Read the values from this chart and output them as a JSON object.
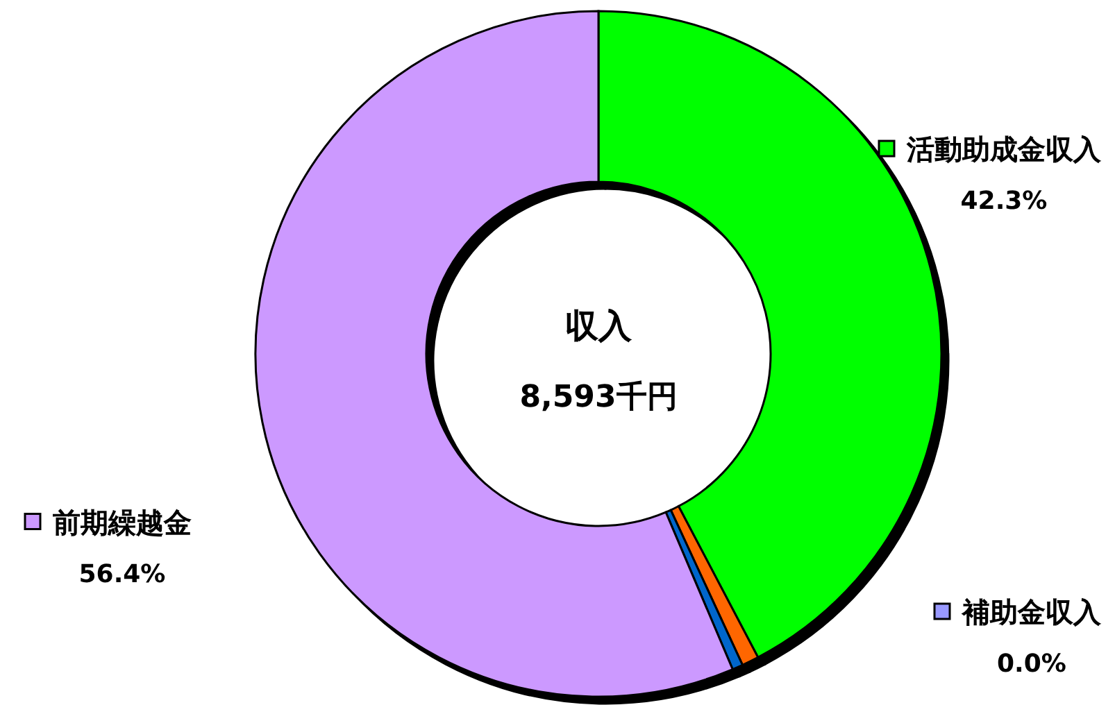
{
  "chart_data": {
    "type": "donut",
    "title": "収入",
    "subtitle": "8,593千円",
    "categories": [
      "活動助成金収入",
      "補助金収入",
      null,
      null,
      "前期繰越金"
    ],
    "values": [
      42.3,
      0.0,
      0.8,
      0.5,
      56.4
    ],
    "colors": [
      "#00ff00",
      "#9999ff",
      "#ff6600",
      "#0066cc",
      "#cc99ff"
    ],
    "legend": "bottom left",
    "value_labels": [
      "42.3%",
      "0.0%",
      null,
      null,
      "56.4%"
    ]
  }
}
